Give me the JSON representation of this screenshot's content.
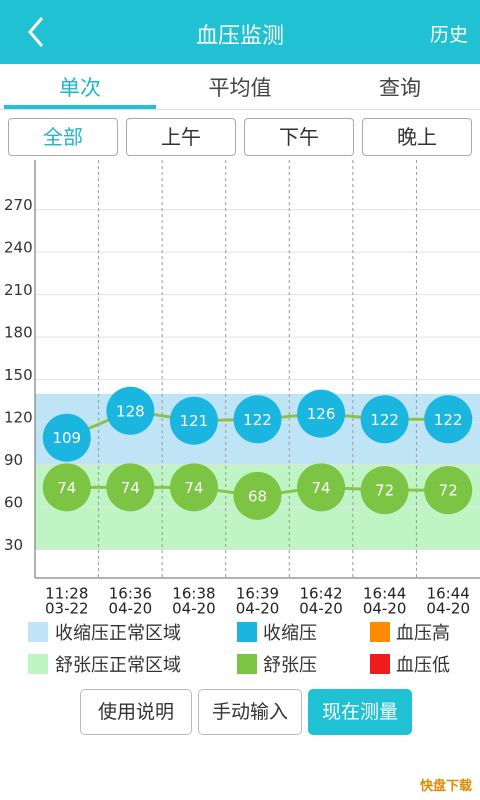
{
  "header": {
    "title": "血压监测",
    "action": "历史"
  },
  "tabs": {
    "items": [
      "单次",
      "平均值",
      "查询"
    ],
    "active": 0
  },
  "filters": {
    "items": [
      "全部",
      "上午",
      "下午",
      "晚上"
    ],
    "active": 0
  },
  "chart_data": {
    "type": "line",
    "categories": [
      [
        "11:28",
        "03-22"
      ],
      [
        "16:36",
        "04-20"
      ],
      [
        "16:38",
        "04-20"
      ],
      [
        "16:39",
        "04-20"
      ],
      [
        "16:42",
        "04-20"
      ],
      [
        "16:44",
        "04-20"
      ],
      [
        "16:44",
        "04-20"
      ]
    ],
    "series": [
      {
        "name": "收缩压",
        "color": "#1ab6e0",
        "line_color": "#8bc34a",
        "values": [
          109,
          128,
          121,
          122,
          126,
          122,
          122
        ]
      },
      {
        "name": "舒张压",
        "color": "#7cc444",
        "line_color": "#8bc34a",
        "values": [
          74,
          74,
          74,
          68,
          74,
          72,
          72
        ]
      }
    ],
    "bands": [
      {
        "name": "收缩压正常区域",
        "color": "#bfe4f6",
        "range": [
          90,
          140
        ]
      },
      {
        "name": "舒张压正常区域",
        "color": "#bff5c4",
        "range": [
          30,
          90
        ]
      }
    ],
    "markers": [
      {
        "name": "血压高",
        "color": "#ff8c00"
      },
      {
        "name": "血压低",
        "color": "#ee1c1c"
      }
    ],
    "ylim": [
      10,
      305
    ],
    "yticks": [
      30,
      60,
      90,
      120,
      150,
      180,
      210,
      240,
      270
    ],
    "grid": true
  },
  "buttons": [
    "使用说明",
    "手动输入",
    "现在测量"
  ],
  "watermark": "快盘下载"
}
